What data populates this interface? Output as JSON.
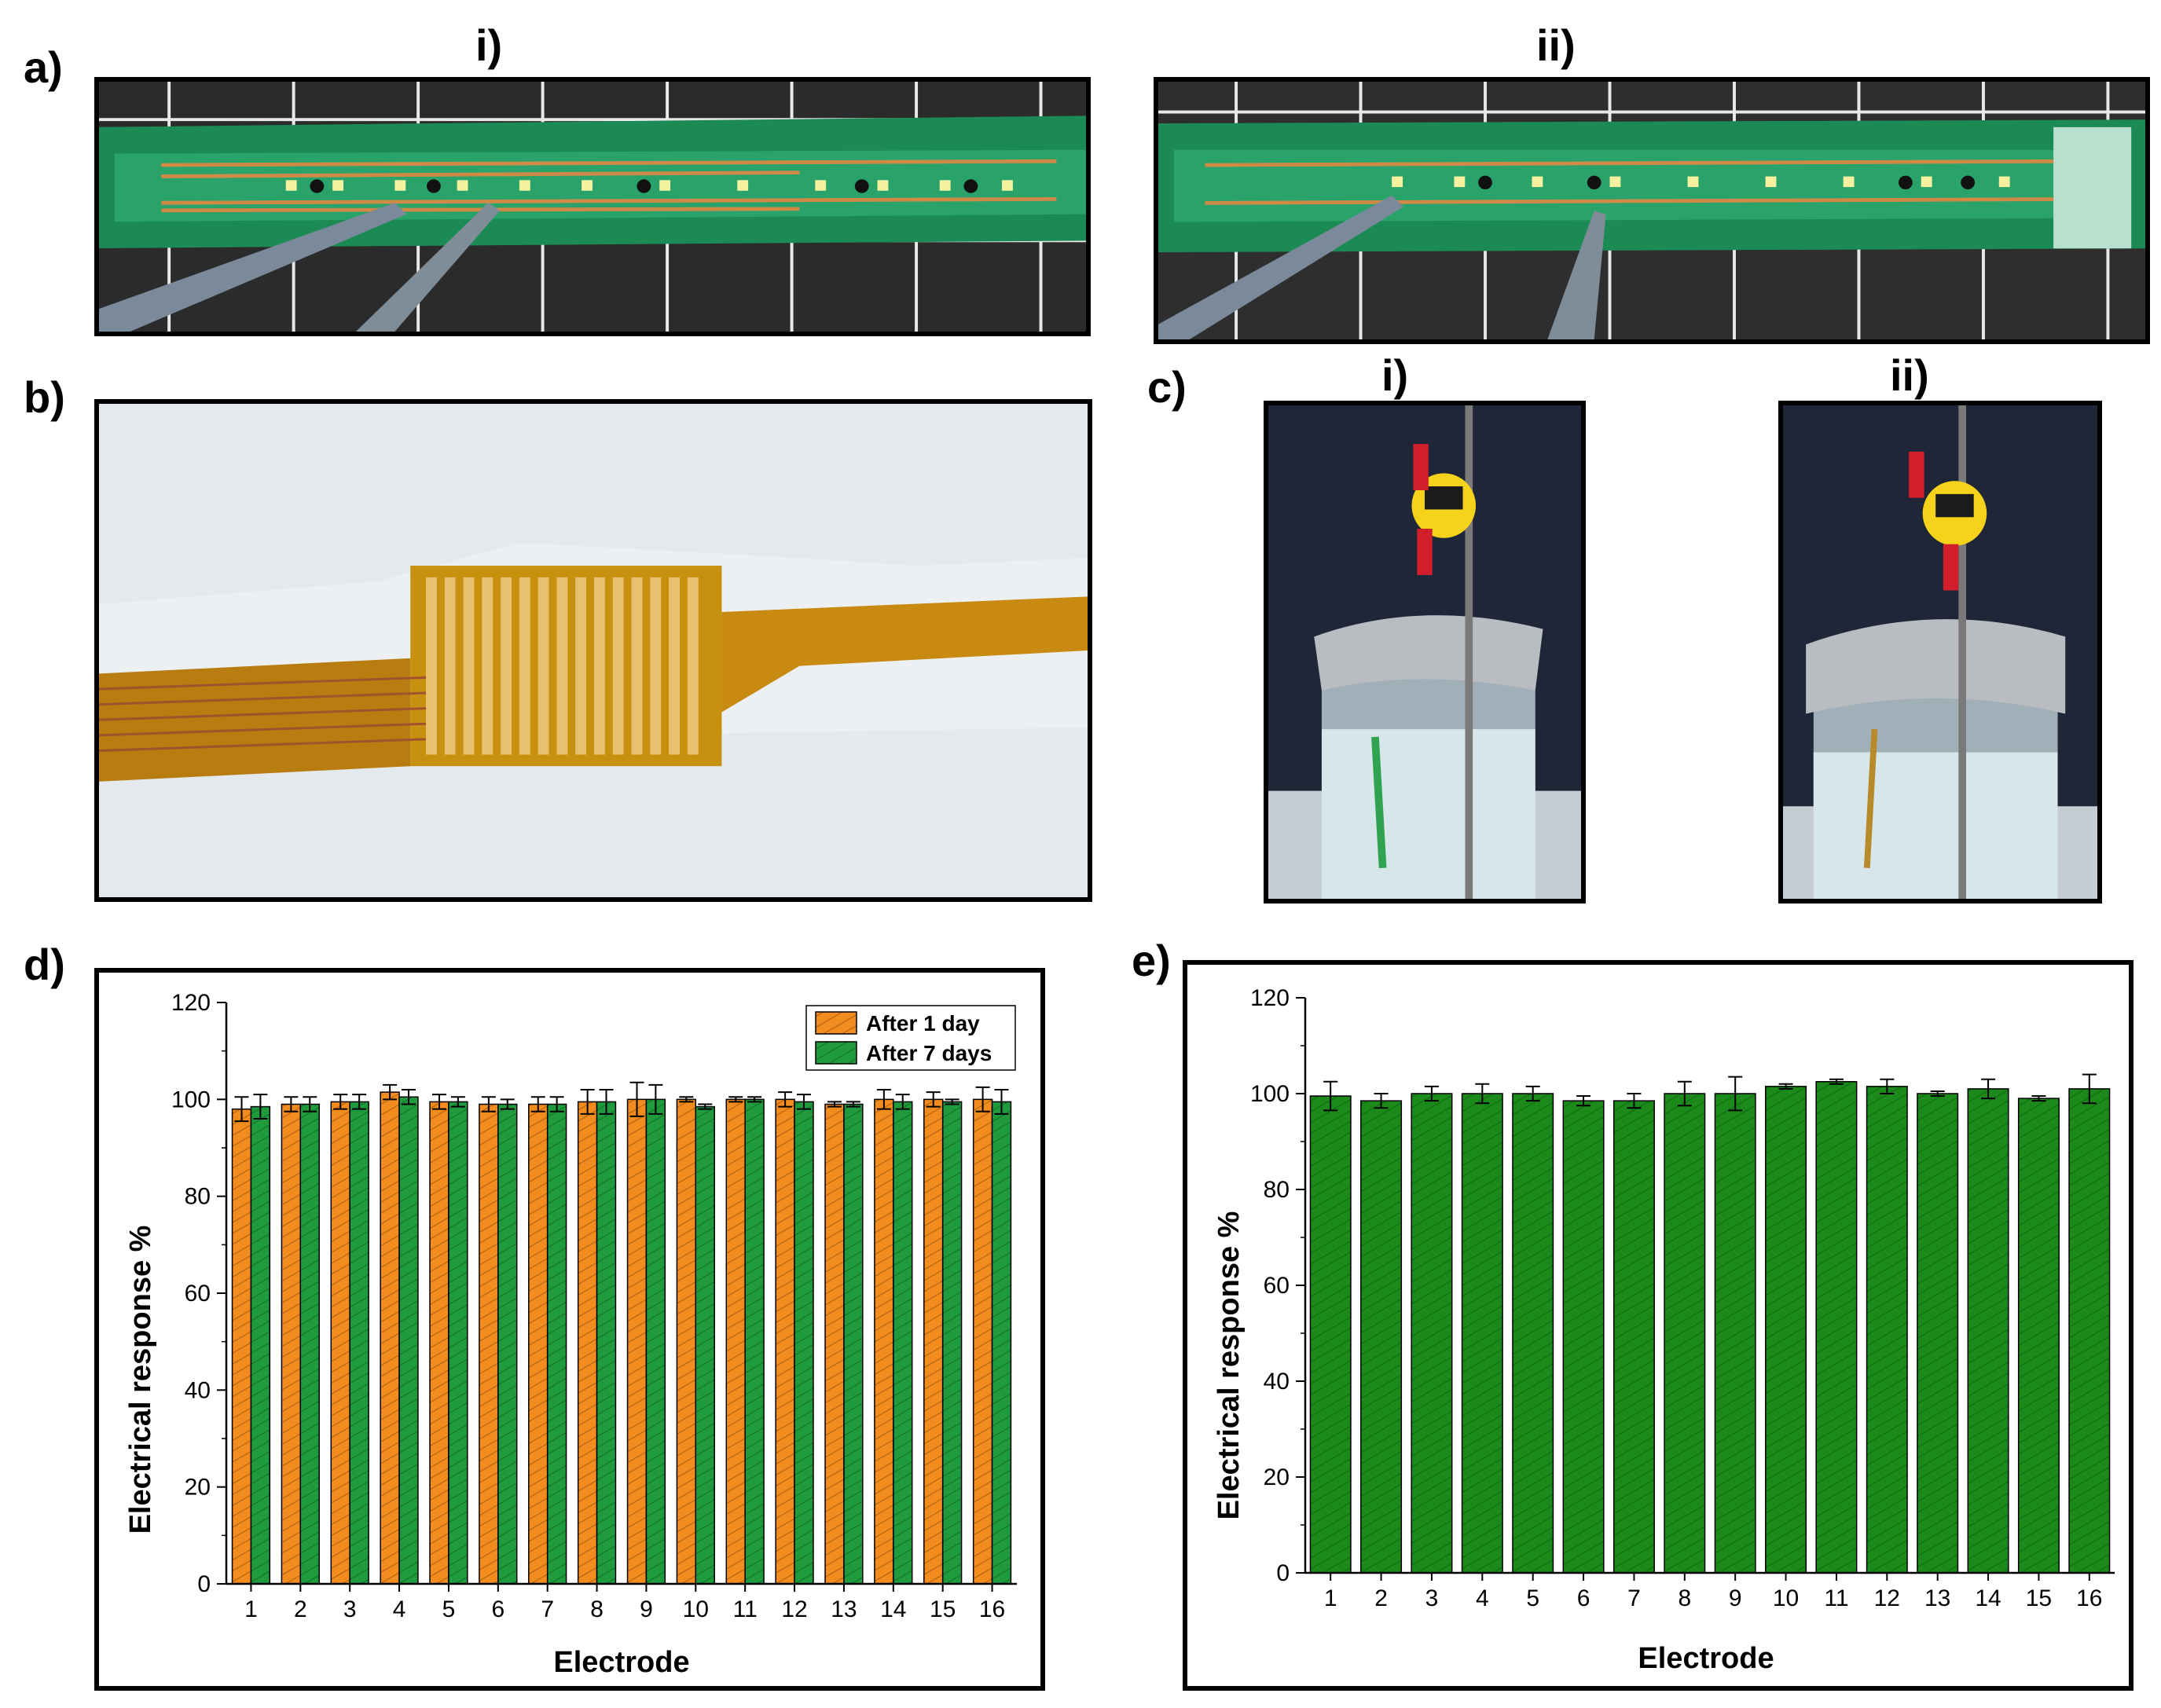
{
  "panels": {
    "a": {
      "label": "a)",
      "sub_i": "i)",
      "sub_ii": "ii)"
    },
    "b": {
      "label": "b)"
    },
    "c": {
      "label": "c)",
      "sub_i": "i)",
      "sub_ii": "ii)"
    },
    "d": {
      "label": "d)"
    },
    "e": {
      "label": "e)"
    }
  },
  "colors": {
    "orange": "#f28c1e",
    "green": "#1f9a3c",
    "dark_green": "#1b8a1b"
  },
  "chart_data": [
    {
      "id": "d",
      "type": "bar",
      "categories": [
        "1",
        "2",
        "3",
        "4",
        "5",
        "6",
        "7",
        "8",
        "9",
        "10",
        "11",
        "12",
        "13",
        "14",
        "15",
        "16"
      ],
      "series": [
        {
          "name": "After 1 day",
          "values": [
            98,
            99,
            99.5,
            101.5,
            99.5,
            99,
            99,
            99.5,
            100,
            100,
            100,
            100,
            99,
            100,
            100,
            100
          ],
          "errors": [
            2.5,
            1.5,
            1.5,
            1.5,
            1.5,
            1.5,
            1.5,
            2.5,
            3.5,
            0.5,
            0.5,
            1.5,
            0.5,
            2,
            1.5,
            2.5
          ]
        },
        {
          "name": "After 7 days",
          "values": [
            98.5,
            99,
            99.5,
            100.5,
            99.5,
            99,
            99,
            99.5,
            100,
            98.5,
            100,
            99.5,
            99,
            99.5,
            99.5,
            99.5
          ],
          "errors": [
            2.5,
            1.5,
            1.5,
            1.5,
            1,
            1,
            1.5,
            2.5,
            3,
            0.5,
            0.5,
            1.5,
            0.5,
            1.5,
            0.5,
            2.5
          ]
        }
      ],
      "ylim": [
        0,
        120
      ],
      "yticks": [
        "0",
        "20",
        "40",
        "60",
        "80",
        "100",
        "120"
      ],
      "xlabel": "Electrode",
      "ylabel": "Electrical response %",
      "legend": "top-right"
    },
    {
      "id": "e",
      "type": "bar",
      "categories": [
        "1",
        "2",
        "3",
        "4",
        "5",
        "6",
        "7",
        "8",
        "9",
        "10",
        "11",
        "12",
        "13",
        "14",
        "15",
        "16"
      ],
      "series": [
        {
          "name": "",
          "values": [
            99.5,
            98.5,
            100,
            100,
            100,
            98.5,
            98.5,
            100,
            100,
            101.5,
            102.5,
            101.5,
            100,
            101,
            99,
            101
          ],
          "errors": [
            3,
            1.5,
            1.5,
            2,
            1.5,
            1,
            1.5,
            2.5,
            3.5,
            0.5,
            0.5,
            1.5,
            0.5,
            2,
            0.5,
            3
          ]
        }
      ],
      "ylim": [
        0,
        120
      ],
      "yticks": [
        "0",
        "20",
        "40",
        "60",
        "80",
        "100",
        "120"
      ],
      "xlabel": "Electrode",
      "ylabel": "Electrical response %"
    }
  ]
}
